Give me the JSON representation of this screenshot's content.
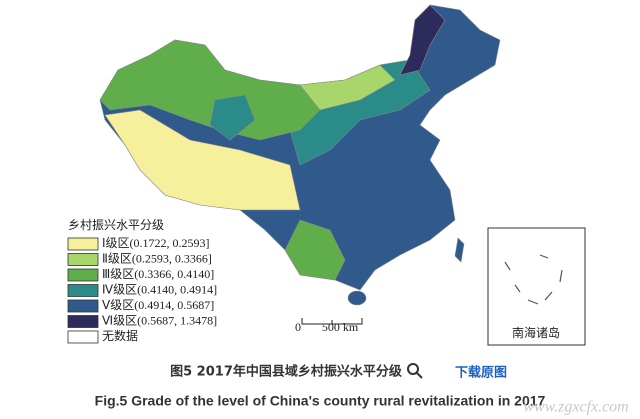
{
  "map": {
    "legend": {
      "title": "乡村振兴水平分级",
      "items": [
        {
          "label": "Ⅰ级区(0.1722, 0.2593]",
          "color": "#f6ef9b"
        },
        {
          "label": "Ⅱ级区(0.2593, 0.3366]",
          "color": "#a9d66b"
        },
        {
          "label": "Ⅲ级区(0.3366, 0.4140]",
          "color": "#5fae4b"
        },
        {
          "label": "Ⅳ级区(0.4140, 0.4914]",
          "color": "#2b8b88"
        },
        {
          "label": "Ⅴ级区(0.4914, 0.5687]",
          "color": "#305a8c"
        },
        {
          "label": "Ⅵ级区(0.5687, 1.3478]",
          "color": "#2d2a5c"
        },
        {
          "label": "无数据",
          "color": "#ffffff"
        }
      ]
    },
    "scale_bar": {
      "start": "0",
      "end": "500 km"
    },
    "inset_label": "南海诸岛"
  },
  "caption": {
    "chinese": "图5 2017年中国县域乡村振兴水平分级",
    "download": "下载原图",
    "english": "Fig.5 Grade of the level of China's county rural revitalization in 2017"
  },
  "watermark": "www.zgxcfx.com"
}
